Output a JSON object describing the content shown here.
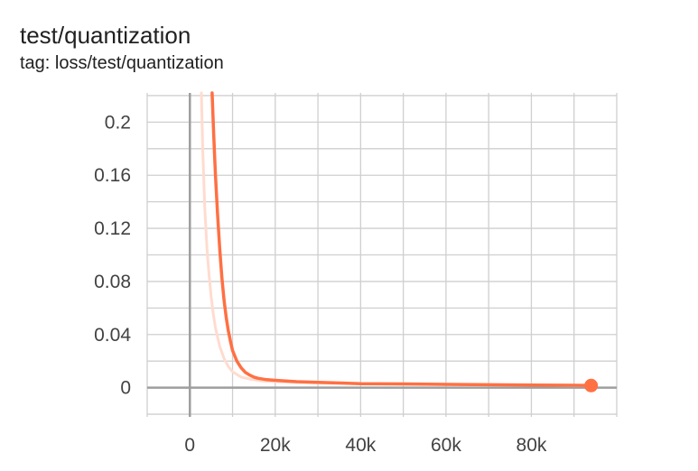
{
  "card": {
    "title": "test/quantization",
    "tag": "tag: loss/test/quantization"
  },
  "chart_data": {
    "type": "line",
    "title": "test/quantization",
    "subtitle": "tag: loss/test/quantization",
    "xlabel": "",
    "ylabel": "",
    "xlim": [
      -10000,
      100000
    ],
    "ylim": [
      -0.022,
      0.222
    ],
    "grid": true,
    "colors": {
      "smoothed": "#ff7043",
      "raw": "#ffdccf",
      "axis": "#9e9e9e",
      "grid": "#cfcfcf"
    },
    "x_ticks": [
      {
        "value": 0,
        "label": "0"
      },
      {
        "value": 20000,
        "label": "20k"
      },
      {
        "value": 40000,
        "label": "40k"
      },
      {
        "value": 60000,
        "label": "60k"
      },
      {
        "value": 80000,
        "label": "80k"
      }
    ],
    "y_ticks": [
      {
        "value": 0,
        "label": "0"
      },
      {
        "value": 0.04,
        "label": "0.04"
      },
      {
        "value": 0.08,
        "label": "0.08"
      },
      {
        "value": 0.12,
        "label": "0.12"
      },
      {
        "value": 0.16,
        "label": "0.16"
      },
      {
        "value": 0.2,
        "label": "0.2"
      }
    ],
    "series": [
      {
        "role": "raw",
        "x": [
          2700,
          3000,
          3500,
          4000,
          4500,
          5000,
          5500,
          6000,
          7000,
          8000,
          9000,
          10000,
          12000,
          14000,
          17000,
          20000,
          30000,
          40000,
          60000,
          80000,
          94000
        ],
        "values": [
          0.222,
          0.18,
          0.135,
          0.105,
          0.085,
          0.068,
          0.055,
          0.045,
          0.031,
          0.022,
          0.016,
          0.012,
          0.008,
          0.0065,
          0.005,
          0.0045,
          0.0035,
          0.003,
          0.0025,
          0.002,
          0.0015
        ]
      },
      {
        "role": "smoothed",
        "x": [
          5200,
          5600,
          6000,
          6500,
          7000,
          7500,
          8000,
          8500,
          9000,
          9500,
          10000,
          11000,
          12000,
          13000,
          14000,
          15000,
          16000,
          18000,
          20000,
          25000,
          30000,
          40000,
          50000,
          60000,
          70000,
          80000,
          90000,
          94000
        ],
        "values": [
          0.222,
          0.19,
          0.16,
          0.13,
          0.104,
          0.083,
          0.066,
          0.053,
          0.043,
          0.035,
          0.028,
          0.02,
          0.015,
          0.0115,
          0.0095,
          0.008,
          0.007,
          0.006,
          0.0055,
          0.0045,
          0.004,
          0.003,
          0.0028,
          0.0025,
          0.0022,
          0.002,
          0.0018,
          0.0016
        ]
      }
    ]
  }
}
